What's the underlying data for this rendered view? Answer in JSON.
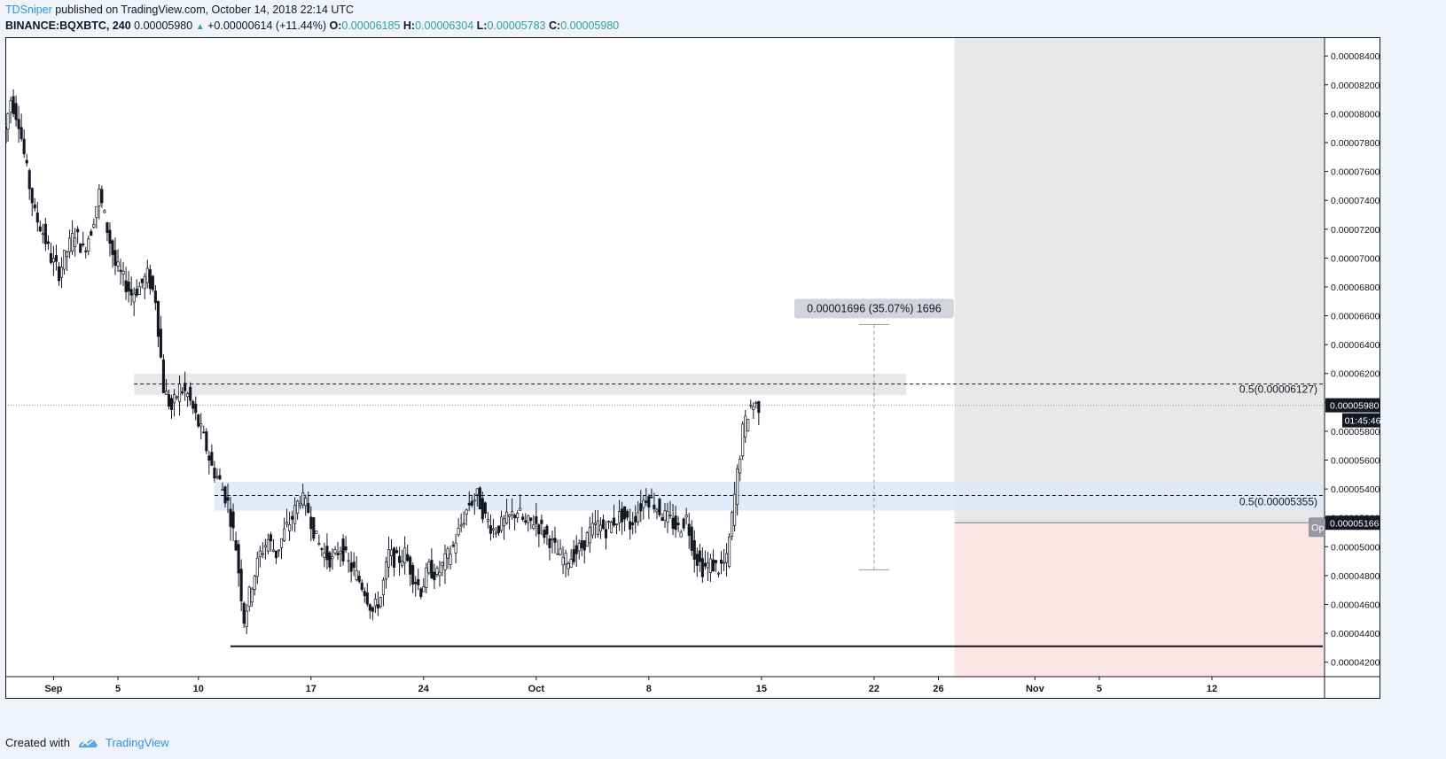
{
  "header": {
    "author": "TDSniper",
    "published_text": "published on TradingView.com, October 14, 2018 22:14 UTC",
    "symbol": "BINANCE:BQXBTC, 240",
    "last": "0.00005980",
    "change": "+0.00000614 (+11.44%)",
    "o_label": "O:",
    "o_value": "0.00006185",
    "h_label": "H:",
    "h_value": "0.00006304",
    "l_label": "L:",
    "l_value": "0.00005783",
    "c_label": "C:",
    "c_value": "0.00005980"
  },
  "footer": {
    "created_with": "Created with",
    "brand": "TradingView"
  },
  "colors": {
    "up": "#26a69a",
    "accent": "#2196f3",
    "candle": "#131722",
    "future_bg": "#e8e8e8",
    "stop_zone": "#fbe6e5",
    "blue_zone": "#dde7f8",
    "gray_zone": "#e6e6e6"
  },
  "chart_data": {
    "type": "candlestick",
    "timeframe": "240",
    "x_range": [
      "2018-08-29",
      "2018-11-19"
    ],
    "ylim": [
      4.1e-05,
      8.53e-05
    ],
    "y_ticks": [
      "0.00008400",
      "0.00008200",
      "0.00008000",
      "0.00007800",
      "0.00007600",
      "0.00007400",
      "0.00007200",
      "0.00007000",
      "0.00006800",
      "0.00006600",
      "0.00006400",
      "0.00006200",
      "0.00006000",
      "0.00005800",
      "0.00005600",
      "0.00005400",
      "0.00005200",
      "0.00005000",
      "0.00004800",
      "0.00004600",
      "0.00004400",
      "0.00004200"
    ],
    "y_tick_values": [
      8.4e-05,
      8.2e-05,
      8e-05,
      7.8e-05,
      7.6e-05,
      7.4e-05,
      7.2e-05,
      7e-05,
      6.8e-05,
      6.6e-05,
      6.4e-05,
      6.2e-05,
      6e-05,
      5.8e-05,
      5.6e-05,
      5.4e-05,
      5.2e-05,
      5e-05,
      4.8e-05,
      4.6e-05,
      4.4e-05,
      4.2e-05
    ],
    "x_ticks": [
      {
        "date": "2018-09-01",
        "label": "Sep"
      },
      {
        "date": "2018-09-05",
        "label": "5"
      },
      {
        "date": "2018-09-10",
        "label": "10"
      },
      {
        "date": "2018-09-17",
        "label": "17"
      },
      {
        "date": "2018-09-24",
        "label": "24"
      },
      {
        "date": "2018-10-01",
        "label": "Oct"
      },
      {
        "date": "2018-10-08",
        "label": "8"
      },
      {
        "date": "2018-10-15",
        "label": "15"
      },
      {
        "date": "2018-10-22",
        "label": "22"
      },
      {
        "date": "2018-10-26",
        "label": "26"
      },
      {
        "date": "2018-11-01",
        "label": "Nov"
      },
      {
        "date": "2018-11-05",
        "label": "5"
      },
      {
        "date": "2018-11-12",
        "label": "12"
      }
    ],
    "closes": [
      {
        "t": "2018-08-29 00:00",
        "c": 7.8e-05
      },
      {
        "t": "2018-08-29 12:00",
        "c": 8.1e-05
      },
      {
        "t": "2018-08-30 00:00",
        "c": 7.95e-05
      },
      {
        "t": "2018-08-30 12:00",
        "c": 7.6e-05
      },
      {
        "t": "2018-08-31 00:00",
        "c": 7.3e-05
      },
      {
        "t": "2018-08-31 12:00",
        "c": 7.18e-05
      },
      {
        "t": "2018-09-01 00:00",
        "c": 7e-05
      },
      {
        "t": "2018-09-01 12:00",
        "c": 6.9e-05
      },
      {
        "t": "2018-09-02 00:00",
        "c": 7.05e-05
      },
      {
        "t": "2018-09-02 12:00",
        "c": 7.18e-05
      },
      {
        "t": "2018-09-03 00:00",
        "c": 7.05e-05
      },
      {
        "t": "2018-09-03 12:00",
        "c": 7.2e-05
      },
      {
        "t": "2018-09-04 00:00",
        "c": 7.45e-05
      },
      {
        "t": "2018-09-04 12:00",
        "c": 7.2e-05
      },
      {
        "t": "2018-09-05 00:00",
        "c": 6.95e-05
      },
      {
        "t": "2018-09-05 12:00",
        "c": 6.85e-05
      },
      {
        "t": "2018-09-06 00:00",
        "c": 6.75e-05
      },
      {
        "t": "2018-09-06 12:00",
        "c": 6.8e-05
      },
      {
        "t": "2018-09-07 00:00",
        "c": 6.88e-05
      },
      {
        "t": "2018-09-07 12:00",
        "c": 6.72e-05
      },
      {
        "t": "2018-09-08 00:00",
        "c": 6.1e-05
      },
      {
        "t": "2018-09-08 12:00",
        "c": 5.95e-05
      },
      {
        "t": "2018-09-09 00:00",
        "c": 6.1e-05
      },
      {
        "t": "2018-09-09 12:00",
        "c": 6.05e-05
      },
      {
        "t": "2018-09-10 00:00",
        "c": 5.9e-05
      },
      {
        "t": "2018-09-10 12:00",
        "c": 5.75e-05
      },
      {
        "t": "2018-09-11 00:00",
        "c": 5.55e-05
      },
      {
        "t": "2018-09-11 12:00",
        "c": 5.45e-05
      },
      {
        "t": "2018-09-12 00:00",
        "c": 5.3e-05
      },
      {
        "t": "2018-09-12 12:00",
        "c": 5e-05
      },
      {
        "t": "2018-09-13 00:00",
        "c": 4.5e-05
      },
      {
        "t": "2018-09-13 12:00",
        "c": 4.75e-05
      },
      {
        "t": "2018-09-14 00:00",
        "c": 4.95e-05
      },
      {
        "t": "2018-09-14 12:00",
        "c": 5.05e-05
      },
      {
        "t": "2018-09-15 00:00",
        "c": 4.95e-05
      },
      {
        "t": "2018-09-15 12:00",
        "c": 5.1e-05
      },
      {
        "t": "2018-09-16 00:00",
        "c": 5.2e-05
      },
      {
        "t": "2018-09-16 12:00",
        "c": 5.35e-05
      },
      {
        "t": "2018-09-17 00:00",
        "c": 5.25e-05
      },
      {
        "t": "2018-09-17 12:00",
        "c": 5.05e-05
      },
      {
        "t": "2018-09-18 00:00",
        "c": 4.95e-05
      },
      {
        "t": "2018-09-18 12:00",
        "c": 4.9e-05
      },
      {
        "t": "2018-09-19 00:00",
        "c": 5e-05
      },
      {
        "t": "2018-09-19 12:00",
        "c": 4.88e-05
      },
      {
        "t": "2018-09-20 00:00",
        "c": 4.8e-05
      },
      {
        "t": "2018-09-20 12:00",
        "c": 4.7e-05
      },
      {
        "t": "2018-09-21 00:00",
        "c": 4.55e-05
      },
      {
        "t": "2018-09-21 12:00",
        "c": 4.65e-05
      },
      {
        "t": "2018-09-22 00:00",
        "c": 4.95e-05
      },
      {
        "t": "2018-09-22 12:00",
        "c": 4.9e-05
      },
      {
        "t": "2018-09-23 00:00",
        "c": 4.95e-05
      },
      {
        "t": "2018-09-23 12:00",
        "c": 4.8e-05
      },
      {
        "t": "2018-09-24 00:00",
        "c": 4.7e-05
      },
      {
        "t": "2018-09-24 12:00",
        "c": 4.85e-05
      },
      {
        "t": "2018-09-25 00:00",
        "c": 4.8e-05
      },
      {
        "t": "2018-09-25 12:00",
        "c": 4.9e-05
      },
      {
        "t": "2018-09-26 00:00",
        "c": 5e-05
      },
      {
        "t": "2018-09-26 12:00",
        "c": 5.15e-05
      },
      {
        "t": "2018-09-27 00:00",
        "c": 5.3e-05
      },
      {
        "t": "2018-09-27 12:00",
        "c": 5.35e-05
      },
      {
        "t": "2018-09-28 00:00",
        "c": 5.2e-05
      },
      {
        "t": "2018-09-28 12:00",
        "c": 5.12e-05
      },
      {
        "t": "2018-09-29 00:00",
        "c": 5.15e-05
      },
      {
        "t": "2018-09-29 12:00",
        "c": 5.2e-05
      },
      {
        "t": "2018-09-30 00:00",
        "c": 5.25e-05
      },
      {
        "t": "2018-09-30 12:00",
        "c": 5.15e-05
      },
      {
        "t": "2018-10-01 00:00",
        "c": 5.18e-05
      },
      {
        "t": "2018-10-01 12:00",
        "c": 5.12e-05
      },
      {
        "t": "2018-10-02 00:00",
        "c": 5.05e-05
      },
      {
        "t": "2018-10-02 12:00",
        "c": 4.95e-05
      },
      {
        "t": "2018-10-03 00:00",
        "c": 4.9e-05
      },
      {
        "t": "2018-10-03 12:00",
        "c": 4.95e-05
      },
      {
        "t": "2018-10-04 00:00",
        "c": 5e-05
      },
      {
        "t": "2018-10-04 12:00",
        "c": 5.1e-05
      },
      {
        "t": "2018-10-05 00:00",
        "c": 5.15e-05
      },
      {
        "t": "2018-10-05 12:00",
        "c": 5.12e-05
      },
      {
        "t": "2018-10-06 00:00",
        "c": 5.18e-05
      },
      {
        "t": "2018-10-06 12:00",
        "c": 5.22e-05
      },
      {
        "t": "2018-10-07 00:00",
        "c": 5.15e-05
      },
      {
        "t": "2018-10-07 12:00",
        "c": 5.25e-05
      },
      {
        "t": "2018-10-08 00:00",
        "c": 5.35e-05
      },
      {
        "t": "2018-10-08 12:00",
        "c": 5.3e-05
      },
      {
        "t": "2018-10-09 00:00",
        "c": 5.22e-05
      },
      {
        "t": "2018-10-09 12:00",
        "c": 5.18e-05
      },
      {
        "t": "2018-10-10 00:00",
        "c": 5.12e-05
      },
      {
        "t": "2018-10-10 12:00",
        "c": 5.2e-05
      },
      {
        "t": "2018-10-11 00:00",
        "c": 4.95e-05
      },
      {
        "t": "2018-10-11 12:00",
        "c": 4.85e-05
      },
      {
        "t": "2018-10-12 00:00",
        "c": 4.88e-05
      },
      {
        "t": "2018-10-12 12:00",
        "c": 4.85e-05
      },
      {
        "t": "2018-10-13 00:00",
        "c": 4.9e-05
      },
      {
        "t": "2018-10-13 12:00",
        "c": 5.35e-05
      },
      {
        "t": "2018-10-14 00:00",
        "c": 5.8e-05
      },
      {
        "t": "2018-10-14 12:00",
        "c": 5.98e-05
      }
    ],
    "annotations": {
      "measure_label": "0.00001696 (35.07%) 1696",
      "measure_from": 4.84e-05,
      "measure_to": 6.54e-05,
      "measure_date": "2018-10-22",
      "level_upper": {
        "label": "0.5(0.00006127)",
        "value": 6.127e-05,
        "zone_top": 6.2e-05,
        "zone_bottom": 6.05e-05,
        "zone_from": "2018-09-06",
        "zone_to": "2018-10-24"
      },
      "level_lower": {
        "label": "0.5(0.00005355)",
        "value": 5.355e-05,
        "zone_top": 5.45e-05,
        "zone_bottom": 5.25e-05,
        "zone_from": "2018-09-11",
        "zone_to": "2018-11-19"
      },
      "support_value": 4.31e-05,
      "support_from": "2018-09-12",
      "last_price_label": "0.00005980",
      "last_price_value": 5.98e-05,
      "countdown": "01:45:46",
      "position_price_label": "0.00005166",
      "position_price_value": 5.166e-05,
      "position_tag": "Op",
      "future_from": "2018-10-27"
    }
  }
}
